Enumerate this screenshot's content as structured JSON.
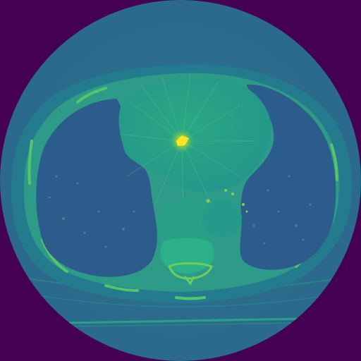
{
  "image": {
    "modality": "CT",
    "view": "axial",
    "region": "thorax",
    "colormap": "viridis",
    "colors": {
      "background": "#440154",
      "field_of_view": "#2e6f8e",
      "air_body": "#2b5f8b",
      "soft_tissue": "#21a585",
      "bone": "#5ec962",
      "bright_metal": "#fde725",
      "lung": "#2d5b8b",
      "table": "#2a8f86"
    },
    "structures": [
      "field-of-view",
      "body-outline",
      "subcutaneous-fat",
      "left-lung",
      "right-lung",
      "heart",
      "metal-streak-artifact",
      "aorta",
      "esophagus",
      "vertebra",
      "ribs",
      "scanner-table"
    ]
  }
}
